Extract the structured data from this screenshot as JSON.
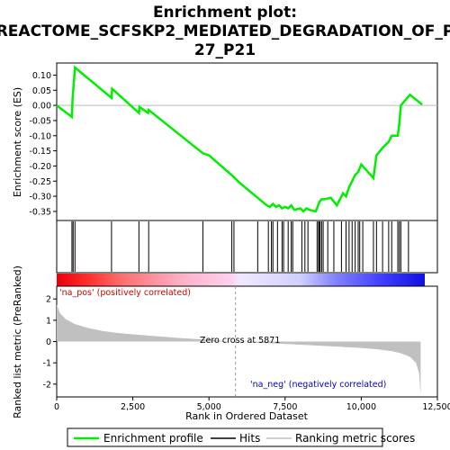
{
  "chart_data": {
    "type": "line",
    "title_lines": [
      "Enrichment plot:",
      "REACTOME_SCFSKP2_MEDIATED_DEGRADATION_OF_P",
      "27_P21"
    ],
    "top_panel": {
      "ylabel": "Enrichment score (ES)",
      "ylim": [
        -0.38,
        0.14
      ],
      "yticks": [
        0.1,
        0.05,
        0.0,
        -0.05,
        -0.1,
        -0.15,
        -0.2,
        -0.25,
        -0.3,
        -0.35
      ],
      "ytick_labels": [
        "0.10",
        "0.05",
        "0.00",
        "-0.05",
        "-0.10",
        "-0.15",
        "-0.20",
        "-0.25",
        "-0.30",
        "-0.35"
      ],
      "series": [
        {
          "name": "Enrichment profile",
          "color": "#00ee00",
          "x": [
            0,
            500,
            520,
            560,
            600,
            1800,
            1820,
            2700,
            2720,
            3000,
            3020,
            4800,
            5000,
            5800,
            6000,
            6600,
            6900,
            7000,
            7100,
            7200,
            7300,
            7400,
            7500,
            7600,
            7700,
            7800,
            8000,
            8100,
            8200,
            8300,
            8500,
            8550,
            8600,
            8650,
            8700,
            8800,
            9000,
            9200,
            9400,
            9500,
            9600,
            9700,
            9750,
            9800,
            9900,
            10000,
            10400,
            10500,
            10700,
            10900,
            11000,
            11200,
            11250,
            11300,
            11600,
            12000
          ],
          "y": [
            0.0,
            -0.038,
            0.02,
            0.075,
            0.125,
            0.025,
            0.055,
            -0.025,
            -0.005,
            -0.025,
            -0.015,
            -0.158,
            -0.165,
            -0.235,
            -0.255,
            -0.305,
            -0.33,
            -0.335,
            -0.325,
            -0.335,
            -0.33,
            -0.34,
            -0.335,
            -0.34,
            -0.33,
            -0.345,
            -0.34,
            -0.35,
            -0.34,
            -0.345,
            -0.35,
            -0.34,
            -0.325,
            -0.315,
            -0.31,
            -0.31,
            -0.305,
            -0.33,
            -0.29,
            -0.3,
            -0.27,
            -0.25,
            -0.24,
            -0.23,
            -0.22,
            -0.195,
            -0.24,
            -0.165,
            -0.14,
            -0.12,
            -0.1,
            -0.1,
            -0.06,
            0.0,
            0.035,
            0.003
          ]
        }
      ]
    },
    "hits": [
      500,
      540,
      600,
      1800,
      2700,
      3020,
      4800,
      5750,
      5820,
      6600,
      6950,
      7050,
      7100,
      7250,
      7400,
      7450,
      7600,
      7700,
      7750,
      8050,
      8150,
      8250,
      8550,
      8600,
      8620,
      8650,
      8700,
      8750,
      8900,
      9100,
      9350,
      9500,
      9600,
      9700,
      9800,
      9900,
      9950,
      10050,
      10400,
      10500,
      10700,
      10900,
      11000,
      11200,
      11250,
      11300,
      11550
    ],
    "colorbar": {
      "label_pos": "'na_pos' (positively correlated)",
      "label_neg": "'na_neg' (negatively correlated)",
      "pos_color": "#ff0000",
      "neg_color": "#0000ff"
    },
    "bottom_panel": {
      "ylabel": "Ranked list metric (PreRanked)",
      "ylim": [
        -2.6,
        2.6
      ],
      "yticks": [
        2,
        1,
        0,
        -1,
        -2
      ],
      "xlabel": "Rank in Ordered Dataset",
      "xlim": [
        0,
        12500
      ],
      "xticks": [
        0,
        2500,
        5000,
        7500,
        10000,
        12500
      ],
      "xtick_labels": [
        "0",
        "2,500",
        "5,000",
        "7,500",
        "10,000",
        "12,500"
      ],
      "zero_cross_label": "Zero cross at 5871",
      "zero_cross": 5871,
      "n_genes": 11950,
      "metric_color": "#c0c0c0",
      "metric_samples": {
        "x": [
          0,
          100,
          300,
          600,
          1000,
          1500,
          2000,
          3000,
          4000,
          5000,
          5871,
          7000,
          8000,
          9000,
          10000,
          10500,
          11000,
          11300,
          11600,
          11800,
          11900,
          11950
        ],
        "y": [
          1.75,
          1.35,
          1.05,
          0.82,
          0.65,
          0.5,
          0.4,
          0.28,
          0.17,
          0.08,
          0.0,
          -0.08,
          -0.15,
          -0.22,
          -0.3,
          -0.36,
          -0.45,
          -0.55,
          -0.72,
          -1.0,
          -1.5,
          -2.5
        ]
      }
    },
    "legend": {
      "items": [
        {
          "label": "Enrichment profile",
          "color": "#00ee00"
        },
        {
          "label": "Hits",
          "color": "#000000"
        },
        {
          "label": "Ranking metric scores",
          "color": "#c0c0c0"
        }
      ]
    }
  }
}
